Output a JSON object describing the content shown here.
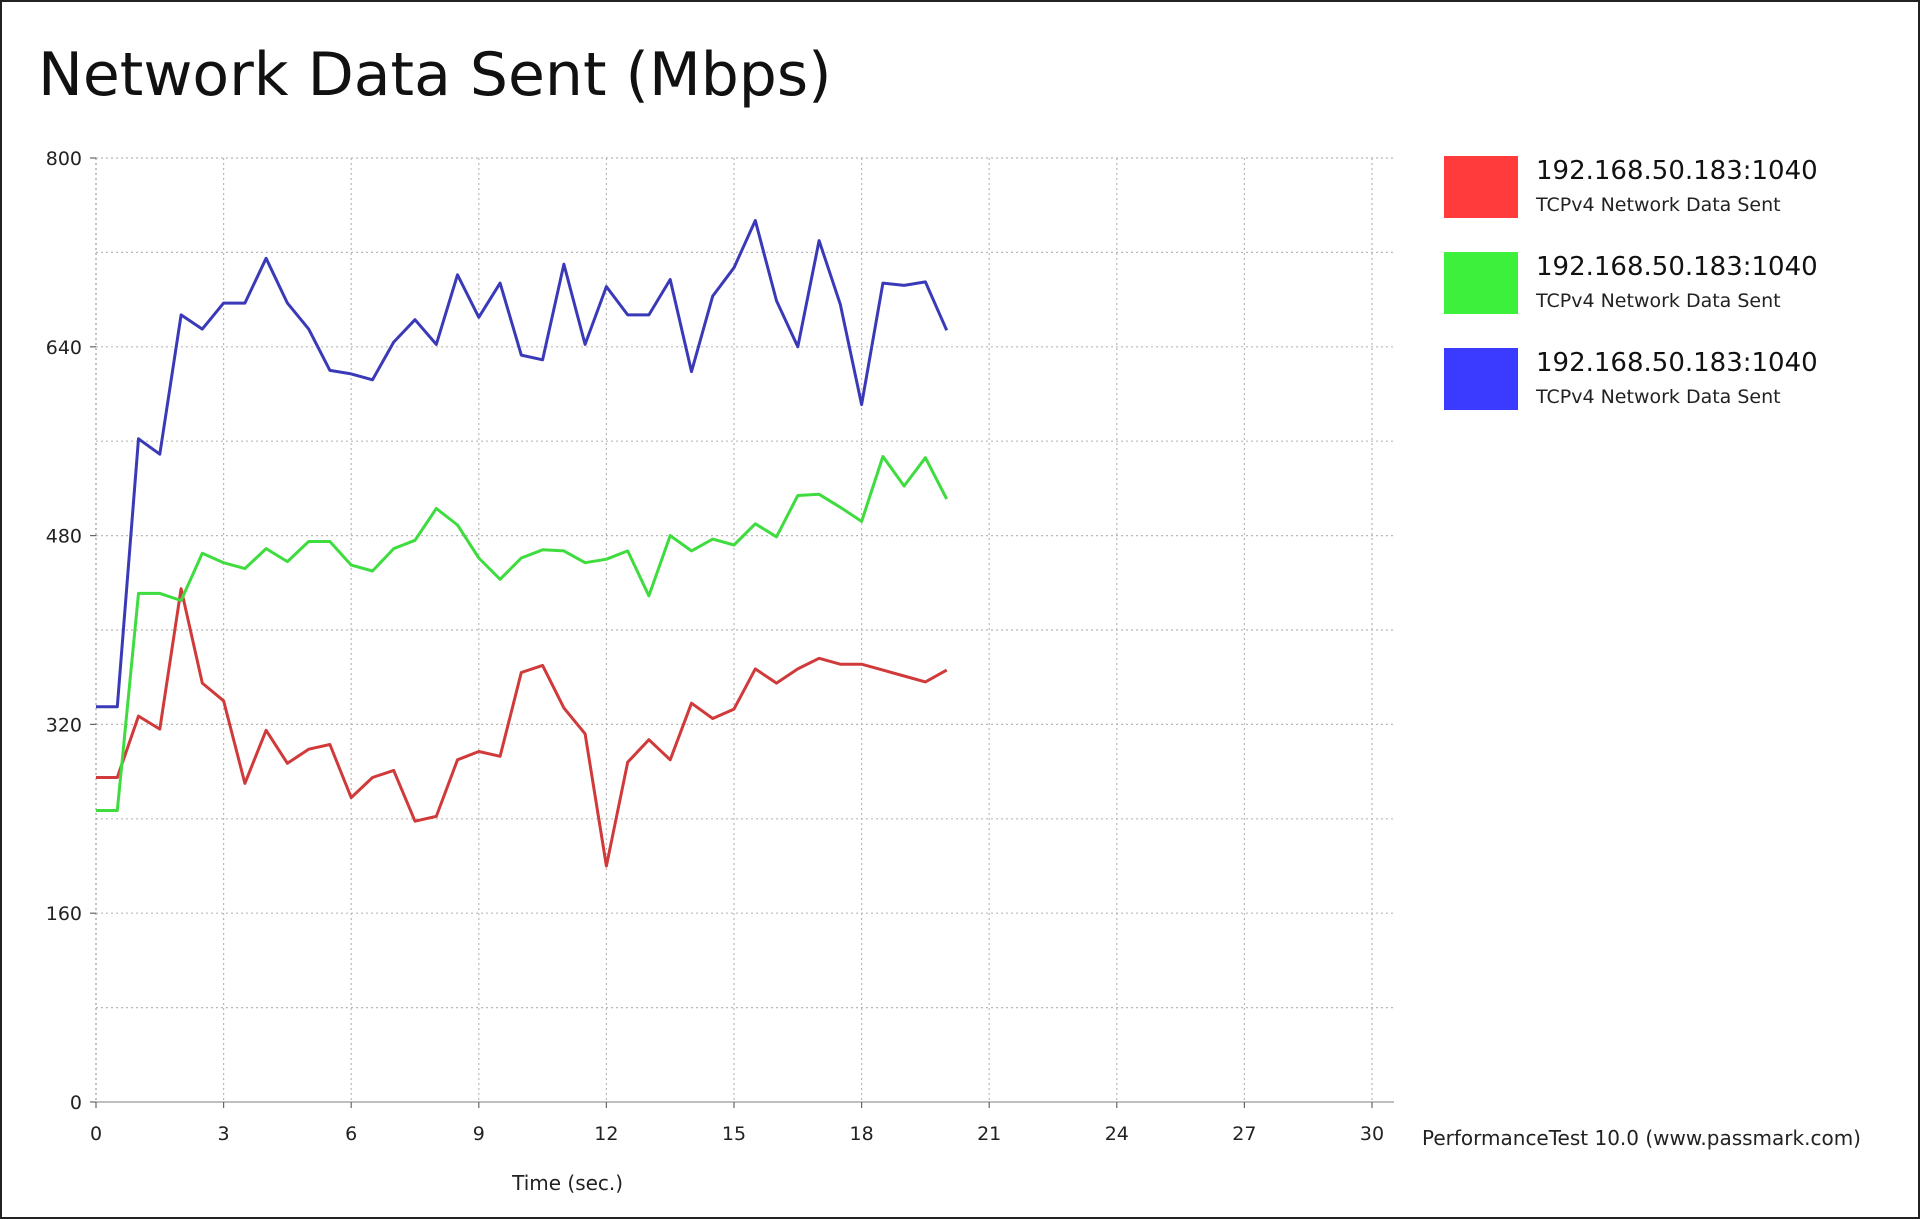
{
  "chart_data": {
    "type": "line",
    "title": "Network Data Sent (Mbps)",
    "xlabel": "Time (sec.)",
    "ylabel": "",
    "xlim": [
      0,
      30
    ],
    "ylim": [
      0,
      800
    ],
    "xticks": [
      0,
      3,
      6,
      9,
      12,
      15,
      18,
      21,
      24,
      27,
      30
    ],
    "yticks": [
      0,
      160,
      320,
      480,
      640,
      800
    ],
    "grid": true,
    "legend_position": "right",
    "x": [
      0,
      0.5,
      1,
      1.5,
      2,
      2.5,
      3,
      3.5,
      4,
      4.5,
      5,
      5.5,
      6,
      6.5,
      7,
      7.5,
      8,
      8.5,
      9,
      9.5,
      10,
      10.5,
      11,
      11.5,
      12,
      12.5,
      13,
      13.5,
      14,
      14.5,
      15,
      15.5,
      16,
      16.5,
      17,
      17.5,
      18,
      18.5,
      19,
      19.5,
      20
    ],
    "series": [
      {
        "name": "192.168.50.183:1040",
        "description": "TCPv4 Network Data Sent",
        "color": "#ff3b3b",
        "line_color": "#d03a3a",
        "values": [
          275,
          275,
          327,
          316,
          435,
          355,
          340,
          270,
          315,
          287,
          299,
          303,
          258,
          275,
          281,
          238,
          242,
          290,
          297,
          293,
          364,
          370,
          334,
          312,
          200,
          288,
          307,
          290,
          338,
          325,
          333,
          367,
          355,
          367,
          376,
          371,
          371,
          366,
          361,
          356,
          366
        ]
      },
      {
        "name": "192.168.50.183:1040",
        "description": "TCPv4 Network Data Sent",
        "color": "#3cf03c",
        "line_color": "#3fdc3f",
        "values": [
          247,
          247,
          431,
          431,
          425,
          465,
          457,
          452,
          469,
          458,
          475,
          475,
          455,
          450,
          469,
          476,
          503,
          489,
          461,
          443,
          461,
          468,
          467,
          457,
          460,
          467,
          429,
          480,
          467,
          477,
          472,
          490,
          479,
          514,
          515,
          504,
          492,
          547,
          522,
          546,
          511
        ]
      },
      {
        "name": "192.168.50.183:1040",
        "description": "TCPv4 Network Data Sent",
        "color": "#3b3bff",
        "line_color": "#3a3ab8",
        "values": [
          335,
          335,
          562,
          549,
          667,
          655,
          677,
          677,
          715,
          677,
          655,
          620,
          617,
          612,
          644,
          663,
          642,
          701,
          665,
          694,
          633,
          629,
          710,
          642,
          691,
          667,
          667,
          697,
          619,
          683,
          707,
          747,
          679,
          640,
          730,
          676,
          591,
          694,
          692,
          695,
          654
        ]
      }
    ]
  },
  "footer": "PerformanceTest 10.0 (www.passmark.com)"
}
